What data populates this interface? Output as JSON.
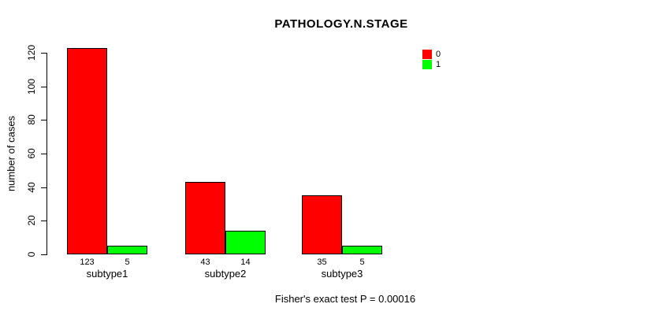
{
  "chart_data": {
    "type": "bar",
    "title": "PATHOLOGY.N.STAGE",
    "ylabel": "number of cases",
    "xlabel": "",
    "categories": [
      "subtype1",
      "subtype2",
      "subtype3"
    ],
    "series": [
      {
        "name": "0",
        "color": "#ff0000",
        "values": [
          123,
          43,
          35
        ]
      },
      {
        "name": "1",
        "color": "#00ff00",
        "values": [
          5,
          14,
          5
        ]
      }
    ],
    "bar_value_labels": [
      [
        "123",
        "43",
        "35"
      ],
      [
        "5",
        "14",
        "5"
      ]
    ],
    "yticks": [
      0,
      20,
      40,
      60,
      80,
      100,
      120
    ],
    "ylim": [
      0,
      120
    ],
    "grid": "off",
    "legend_position": "top-right",
    "legend_entries": [
      {
        "label": "0",
        "color": "#ff0000"
      },
      {
        "label": "1",
        "color": "#00ff00"
      }
    ],
    "footer": "Fisher's exact test P = 0.00016"
  }
}
